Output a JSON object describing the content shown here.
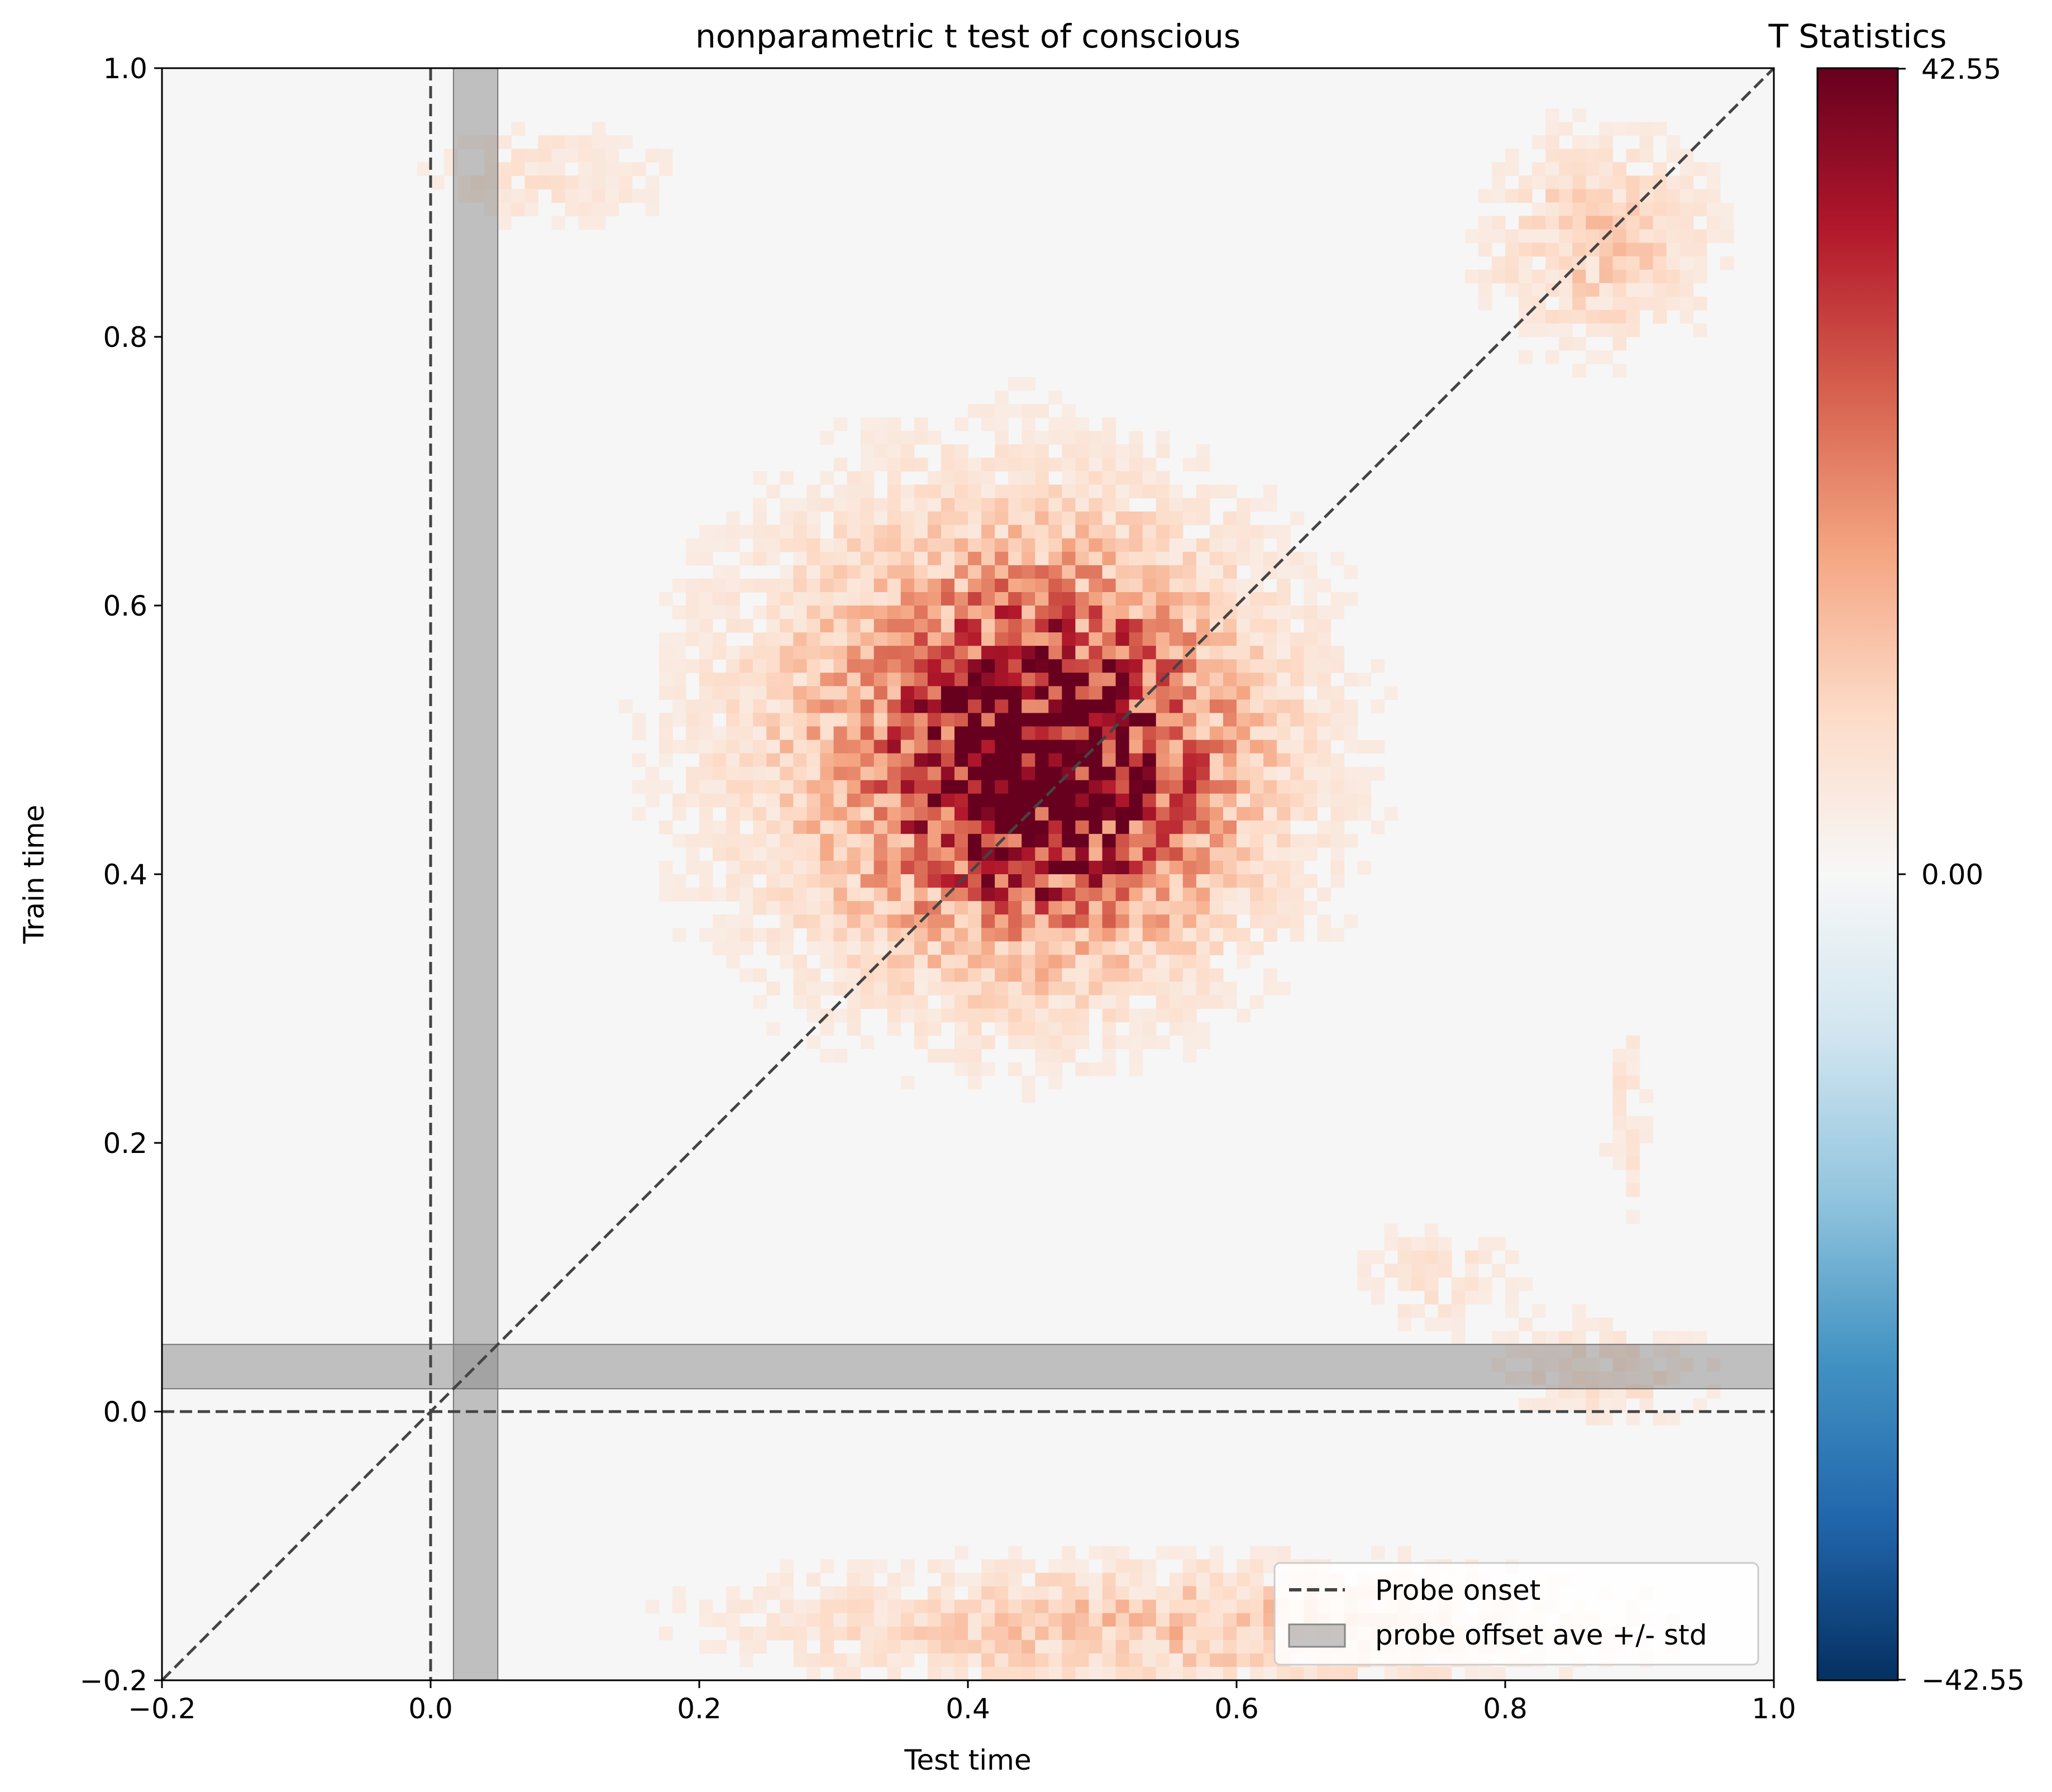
{
  "chart_data": {
    "type": "heatmap",
    "title": "nonparametric t test of conscious",
    "xlabel": "Test time",
    "ylabel": "Train time",
    "xlim": [
      -0.2,
      1.0
    ],
    "ylim": [
      -0.2,
      1.0
    ],
    "xticks": [
      "−0.2",
      "0.0",
      "0.2",
      "0.4",
      "0.6",
      "0.8",
      "1.0"
    ],
    "yticks": [
      "−0.2",
      "0.0",
      "0.2",
      "0.4",
      "0.6",
      "0.8",
      "1.0"
    ],
    "colorbar": {
      "title": "T Statistics",
      "min": -42.55,
      "max": 42.55,
      "colormap": "RdBu_r",
      "tick_labels": [
        "42.55",
        "0.00",
        "−42.55"
      ]
    },
    "grid": false,
    "reference_lines": {
      "probe_onset": 0.0,
      "diagonal": true,
      "probe_offset_band": [
        0.017,
        0.05
      ]
    },
    "legend": {
      "placement": "lower-right",
      "entries": [
        "Probe onset",
        "probe offset ave +/- std"
      ]
    },
    "clusters": [
      {
        "x": 0.46,
        "y": 0.48,
        "sx": 0.075,
        "sy": 0.075,
        "peak": 42.0
      },
      {
        "x": 0.43,
        "y": 0.5,
        "sx": 0.14,
        "sy": 0.13,
        "peak": 22.0
      },
      {
        "x": 0.87,
        "y": 0.87,
        "sx": 0.06,
        "sy": 0.06,
        "peak": 12.0
      },
      {
        "x": 0.55,
        "y": -0.16,
        "sx": 0.22,
        "sy": 0.035,
        "peak": 14.0
      },
      {
        "x": 0.09,
        "y": 0.92,
        "sx": 0.07,
        "sy": 0.03,
        "peak": 7.0
      },
      {
        "x": 0.88,
        "y": 0.03,
        "sx": 0.06,
        "sy": 0.03,
        "peak": 8.0
      },
      {
        "x": 0.75,
        "y": 0.1,
        "sx": 0.05,
        "sy": 0.03,
        "peak": 7.0
      },
      {
        "x": 0.89,
        "y": 0.22,
        "sx": 0.015,
        "sy": 0.06,
        "peak": 7.0
      }
    ]
  }
}
